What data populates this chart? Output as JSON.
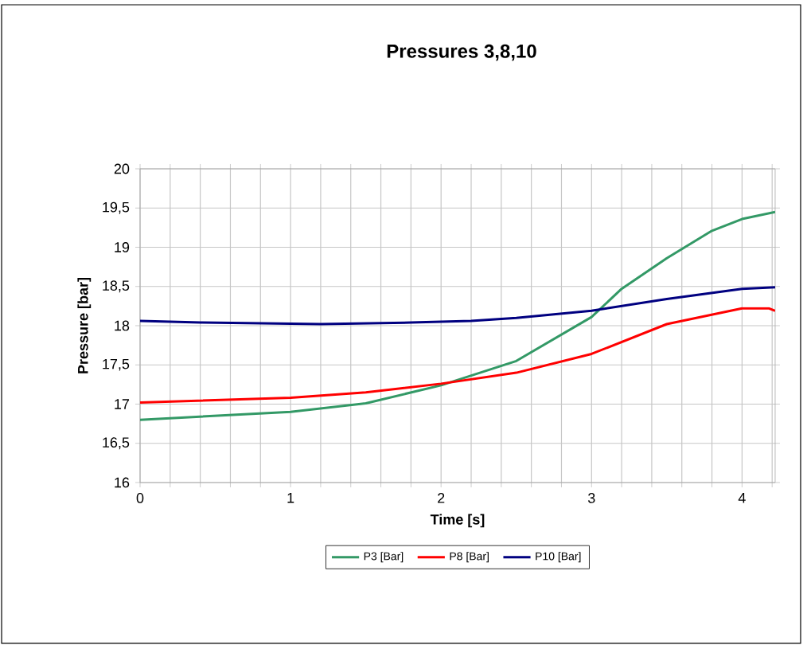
{
  "chart_data": {
    "type": "line",
    "title": "Pressures 3,8,10",
    "xlabel": "Time [s]",
    "ylabel": "Pressure [bar]",
    "xlim": [
      0,
      4.22
    ],
    "ylim": [
      16,
      20
    ],
    "xticks": [
      0,
      {
        "value": 0.2,
        "label": null
      },
      {
        "value": 0.4,
        "label": null
      },
      {
        "value": 0.6,
        "label": null
      },
      {
        "value": 0.8,
        "label": null
      },
      1,
      {
        "value": 1.2,
        "label": null
      },
      {
        "value": 1.4,
        "label": null
      },
      {
        "value": 1.6,
        "label": null
      },
      {
        "value": 1.8,
        "label": null
      },
      2,
      {
        "value": 2.2,
        "label": null
      },
      {
        "value": 2.4,
        "label": null
      },
      {
        "value": 2.6,
        "label": null
      },
      {
        "value": 2.8,
        "label": null
      },
      3,
      {
        "value": 3.2,
        "label": null
      },
      {
        "value": 3.4,
        "label": null
      },
      {
        "value": 3.6,
        "label": null
      },
      {
        "value": 3.8,
        "label": null
      },
      4,
      {
        "value": 4.2,
        "label": null
      }
    ],
    "yticks": [
      16,
      {
        "value": 16.5,
        "label": "16,5"
      },
      17,
      {
        "value": 17.5,
        "label": "17,5"
      },
      18,
      {
        "value": 18.5,
        "label": "18,5"
      },
      19,
      {
        "value": 19.5,
        "label": "19,5"
      },
      20
    ],
    "grid": true,
    "legend": "bottom",
    "marker": "none",
    "line_style": "solid",
    "series": [
      {
        "name": "P3 [Bar]",
        "color": "#339966",
        "x": [
          0,
          1,
          1.5,
          2,
          2.5,
          3,
          3.2,
          3.5,
          3.8,
          4,
          4.22
        ],
        "values": [
          16.8,
          16.9,
          17.01,
          17.24,
          17.55,
          18.11,
          18.47,
          18.86,
          19.21,
          19.36,
          19.45
        ]
      },
      {
        "name": "P8 [Bar]",
        "color": "#ff0000",
        "x": [
          0,
          1,
          1.5,
          2,
          2.5,
          3,
          3.5,
          4,
          4.18,
          4.22
        ],
        "values": [
          17.02,
          17.08,
          17.15,
          17.26,
          17.4,
          17.64,
          18.02,
          18.22,
          18.22,
          18.19
        ]
      },
      {
        "name": "P10 [Bar]",
        "color": "#000080",
        "x": [
          0,
          0.4,
          1.2,
          1.8,
          2.2,
          2.5,
          3,
          3.5,
          4,
          4.22
        ],
        "values": [
          18.06,
          18.04,
          18.02,
          18.04,
          18.06,
          18.1,
          18.19,
          18.34,
          18.47,
          18.49
        ]
      }
    ]
  }
}
